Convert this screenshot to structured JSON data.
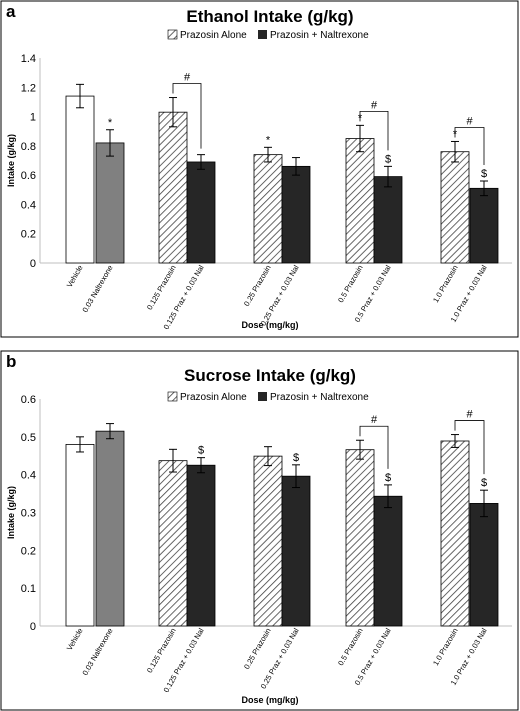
{
  "chart_data": [
    {
      "type": "bar",
      "panel_label": "a",
      "title": "Ethanol Intake (g/kg)",
      "xlabel": "Dose (mg/kg)",
      "ylabel": "Intake (g/kg)",
      "ylim": [
        0,
        1.4
      ],
      "yticks": [
        "0",
        "0.2",
        "0.4",
        "0.6",
        "0.8",
        "1",
        "1.2",
        "1.4"
      ],
      "legend": [
        "Prazosin Alone",
        "Prazosin + Naltrexone"
      ],
      "legend_position": "top",
      "bars": [
        {
          "label": "Vehicle",
          "value": 1.14,
          "error": 0.08,
          "style": "white",
          "marker": ""
        },
        {
          "label": "0.03 Naltrexone",
          "value": 0.82,
          "error": 0.09,
          "style": "gray",
          "marker": "*"
        },
        {
          "label": "0.125 Prazosin",
          "value": 1.03,
          "error": 0.1,
          "style": "hatch",
          "marker": ""
        },
        {
          "label": "0.125 Praz + 0.03 Nal",
          "value": 0.69,
          "error": 0.05,
          "style": "dark",
          "marker": ""
        },
        {
          "label": "0.25 Prazosin",
          "value": 0.74,
          "error": 0.05,
          "style": "hatch",
          "marker": "*"
        },
        {
          "label": "0.25 Praz + 0.03 Nal",
          "value": 0.66,
          "error": 0.06,
          "style": "dark",
          "marker": ""
        },
        {
          "label": "0.5 Prazosin",
          "value": 0.85,
          "error": 0.09,
          "style": "hatch",
          "marker": "*"
        },
        {
          "label": "0.5 Praz + 0.03 Nal",
          "value": 0.59,
          "error": 0.07,
          "style": "dark",
          "marker": "$"
        },
        {
          "label": "1.0 Prazosin",
          "value": 0.76,
          "error": 0.07,
          "style": "hatch",
          "marker": "*"
        },
        {
          "label": "1.0 Praz + 0.03 Nal",
          "value": 0.51,
          "error": 0.05,
          "style": "dark",
          "marker": "$"
        }
      ],
      "brackets": [
        {
          "from": 2,
          "to": 3,
          "label": "#"
        },
        {
          "from": 6,
          "to": 7,
          "label": "#"
        },
        {
          "from": 8,
          "to": 9,
          "label": "#"
        }
      ]
    },
    {
      "type": "bar",
      "panel_label": "b",
      "title": "Sucrose Intake (g/kg)",
      "xlabel": "Dose (mg/kg)",
      "ylabel": "Intake (g/kg)",
      "ylim": [
        0,
        0.6
      ],
      "yticks": [
        "0",
        "0.1",
        "0.2",
        "0.3",
        "0.4",
        "0.5",
        "0.6"
      ],
      "legend": [
        "Prazosin Alone",
        "Prazosin + Naltrexone"
      ],
      "legend_position": "top",
      "bars": [
        {
          "label": "Vehicle",
          "value": 0.48,
          "error": 0.02,
          "style": "white",
          "marker": ""
        },
        {
          "label": "0.03 Naltrexone",
          "value": 0.515,
          "error": 0.02,
          "style": "gray",
          "marker": ""
        },
        {
          "label": "0.125 Prazosin",
          "value": 0.437,
          "error": 0.03,
          "style": "hatch",
          "marker": ""
        },
        {
          "label": "0.125 Praz + 0.03 Nal",
          "value": 0.425,
          "error": 0.02,
          "style": "dark",
          "marker": "$"
        },
        {
          "label": "0.25 Prazosin",
          "value": 0.449,
          "error": 0.025,
          "style": "hatch",
          "marker": ""
        },
        {
          "label": "0.25 Praz + 0.03 Nal",
          "value": 0.396,
          "error": 0.03,
          "style": "dark",
          "marker": "$"
        },
        {
          "label": "0.5 Prazosin",
          "value": 0.466,
          "error": 0.025,
          "style": "hatch",
          "marker": ""
        },
        {
          "label": "0.5 Praz + 0.03 Nal",
          "value": 0.343,
          "error": 0.03,
          "style": "dark",
          "marker": "$"
        },
        {
          "label": "1.0 Prazosin",
          "value": 0.489,
          "error": 0.017,
          "style": "hatch",
          "marker": ""
        },
        {
          "label": "1.0 Praz + 0.03 Nal",
          "value": 0.324,
          "error": 0.035,
          "style": "dark",
          "marker": "$"
        }
      ],
      "brackets": [
        {
          "from": 6,
          "to": 7,
          "label": "#"
        },
        {
          "from": 8,
          "to": 9,
          "label": "#"
        }
      ]
    }
  ],
  "colors": {
    "white": "#ffffff",
    "gray": "#808080",
    "dark": "#262626",
    "hatch_line": "#404040",
    "axis": "#bfbfbf",
    "border": "#000000"
  }
}
